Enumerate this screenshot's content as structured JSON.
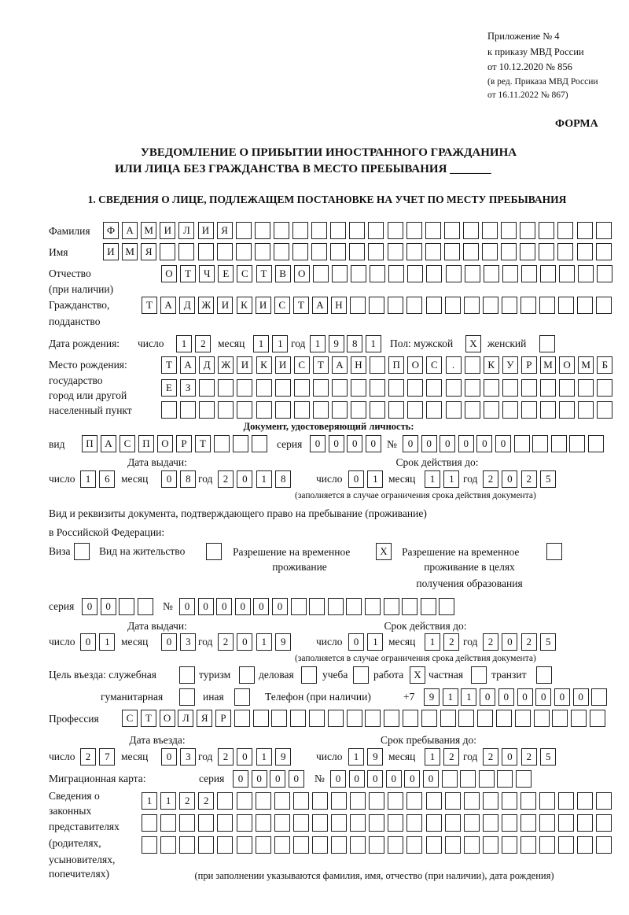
{
  "header": {
    "appendix": "Приложение № 4",
    "order": "к приказу МВД России",
    "order_date": "от 10.12.2020 № 856",
    "revision_line1": "(в ред. Приказа МВД России",
    "revision_line2": "от 16.11.2022 № 867)",
    "form_label": "ФОРМА"
  },
  "title": {
    "line1": "УВЕДОМЛЕНИЕ О ПРИБЫТИИ ИНОСТРАННОГО ГРАЖДАНИНА",
    "line2": "ИЛИ ЛИЦА БЕЗ ГРАЖДАНСТВА В МЕСТО ПРЕБЫВАНИЯ",
    "blank": "_______"
  },
  "section1": {
    "heading": "1. СВЕДЕНИЯ О ЛИЦЕ, ПОДЛЕЖАЩЕМ ПОСТАНОВКЕ НА УЧЕТ ПО МЕСТУ ПРЕБЫВАНИЯ"
  },
  "labels": {
    "surname": "Фамилия",
    "name": "Имя",
    "patronymic": "Отчество",
    "patronymic_note": "(при наличии)",
    "citizenship": "Гражданство,",
    "citizenship2": "подданство",
    "birth_date": "Дата рождения:",
    "day": "число",
    "month": "месяц",
    "year": "год",
    "sex": "Пол: мужской",
    "female": "женский",
    "birthplace": "Место рождения:",
    "birthplace_state": "государство",
    "birthplace_city": "город или другой",
    "birthplace_city2": "населенный пункт",
    "id_doc": "Документ, удостоверяющий личность:",
    "kind": "вид",
    "series": "серия",
    "number": "№",
    "issue_date": "Дата выдачи:",
    "valid_until": "Срок действия до:",
    "validity_note": "(заполняется в случае ограничения срока действия документа)",
    "stay_doc": "Вид и реквизиты документа, подтверждающего право на пребывание (проживание)",
    "stay_doc2": "в Российской Федерации:",
    "visa": "Виза",
    "residence_permit": "Вид на жительство",
    "temp_permit": "Разрешение на временное",
    "temp_permit2": "проживание",
    "temp_permit_edu": "Разрешение на временное",
    "temp_permit_edu2": "проживание в целях",
    "temp_permit_edu3": "получения образования",
    "purpose": "Цель въезда: служебная",
    "tourism": "туризм",
    "business": "деловая",
    "study": "учеба",
    "work": "работа",
    "private": "частная",
    "transit": "транзит",
    "humanitarian": "гуманитарная",
    "other": "иная",
    "phone": "Телефон (при наличии)",
    "phone_prefix": "+7",
    "profession": "Профессия",
    "entry_date": "Дата въезда:",
    "stay_until": "Срок пребывания до:",
    "migration_card": "Миграционная карта:",
    "representatives1": "Сведения о",
    "representatives2": "законных",
    "representatives3": "представителях",
    "representatives4": "(родителях,",
    "representatives5": "усыновителях,",
    "representatives6": "попечителях)",
    "representatives_note": "(при заполнении указываются фамилия, имя, отчество (при наличии), дата рождения)"
  },
  "values": {
    "surname": "ФАМИЛИЯ",
    "name": "ИМЯ",
    "patronymic": "ОТЧЕСТВО",
    "citizenship": "ТАДЖИКИСТАН",
    "birth_day": "12",
    "birth_month": "11",
    "birth_year": "1981",
    "sex_male": "X",
    "sex_female": "",
    "birthplace_row1": "ТАДЖИКИСТАН ПОС. КУРМОМБ",
    "birthplace_row2": "ЕЗ",
    "birthplace_row3": "",
    "id_kind": "ПАСПОРТ",
    "id_series": "0000",
    "id_number": "000000",
    "id_issue_day": "16",
    "id_issue_month": "08",
    "id_issue_year": "2018",
    "id_valid_day": "01",
    "id_valid_month": "11",
    "id_valid_year": "2025",
    "visa": "",
    "residence_permit": "",
    "temp_permit": "X",
    "temp_permit_edu": "",
    "stay_series": "00",
    "stay_number": "000000",
    "stay_issue_day": "01",
    "stay_issue_month": "03",
    "stay_issue_year": "2019",
    "stay_valid_day": "01",
    "stay_valid_month": "12",
    "stay_valid_year": "2025",
    "purpose_official": "",
    "purpose_tourism": "",
    "purpose_business": "",
    "purpose_study": "",
    "purpose_work": "X",
    "purpose_private": "",
    "purpose_transit": "",
    "purpose_humanitarian": "",
    "purpose_other": "",
    "phone": "911000000",
    "profession": "СТОЛЯР",
    "entry_day": "27",
    "entry_month": "03",
    "entry_year": "2019",
    "stay_until_day": "19",
    "stay_until_month": "12",
    "stay_until_year": "2025",
    "migration_series": "0000",
    "migration_number": "000000",
    "representatives_row1": "1122",
    "representatives_row2": "",
    "representatives_row3": ""
  }
}
